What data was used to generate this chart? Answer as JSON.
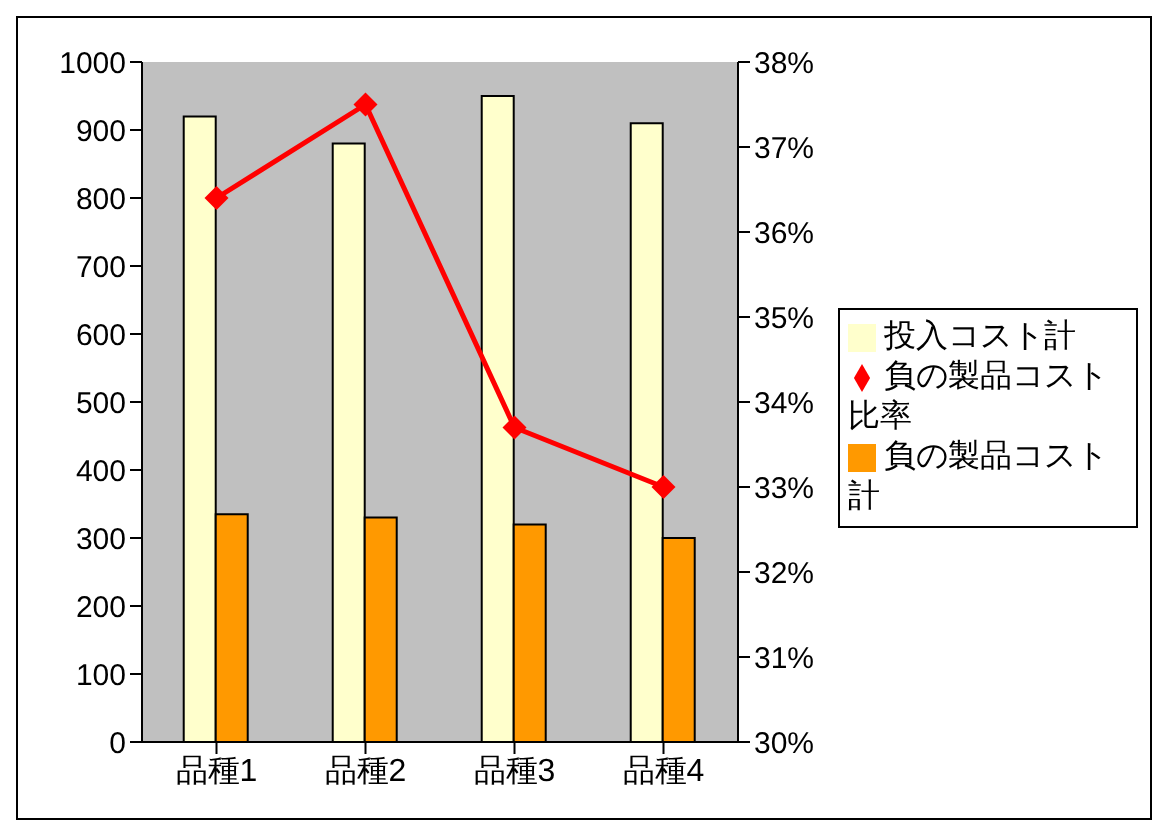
{
  "chart_data": {
    "type": "bar",
    "categories": [
      "品種1",
      "品種2",
      "品種3",
      "品種4"
    ],
    "series": [
      {
        "name": "投入コスト計",
        "color": "#ffffcc",
        "values": [
          920,
          880,
          950,
          910
        ]
      },
      {
        "name": "負の製品コスト計",
        "color": "#ff9900",
        "values": [
          335,
          330,
          320,
          300
        ]
      },
      {
        "name": "負の製品コスト比率",
        "type": "line",
        "axis": "y2",
        "color": "#ff0000",
        "values": [
          36.4,
          37.5,
          33.7,
          33.0
        ],
        "marker": "diamond"
      }
    ],
    "ylim": [
      0,
      1000
    ],
    "yticks": [
      0,
      100,
      200,
      300,
      400,
      500,
      600,
      700,
      800,
      900,
      1000
    ],
    "y2lim": [
      30,
      38
    ],
    "y2ticks": [
      {
        "value": 30,
        "label": "30%"
      },
      {
        "value": 31,
        "label": "31%"
      },
      {
        "value": 32,
        "label": "32%"
      },
      {
        "value": 33,
        "label": "33%"
      },
      {
        "value": 34,
        "label": "34%"
      },
      {
        "value": 35,
        "label": "35%"
      },
      {
        "value": 36,
        "label": "36%"
      },
      {
        "value": 37,
        "label": "37%"
      },
      {
        "value": 38,
        "label": "38%"
      }
    ],
    "grid": false,
    "legend": "right"
  }
}
